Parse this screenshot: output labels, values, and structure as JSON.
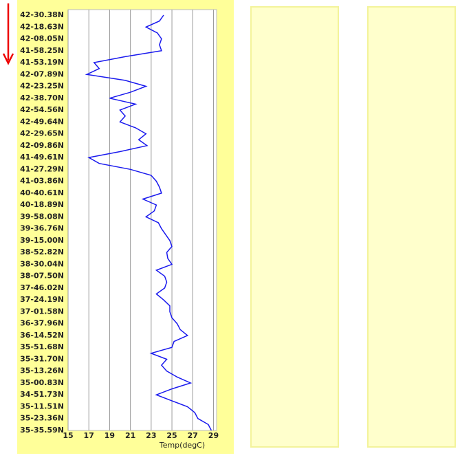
{
  "chart_data": {
    "type": "line",
    "orientation": "vertical-track",
    "x_label": "Temp(degC)",
    "categories": [
      "42-30.38N",
      null,
      "42-18.63N",
      null,
      "42-08.05N",
      null,
      "41-58.25N",
      null,
      "41-53.19N",
      null,
      "42-07.89N",
      null,
      "42-23.25N",
      null,
      "42-38.70N",
      null,
      "42-54.56N",
      null,
      "42-49.64N",
      null,
      "42-29.65N",
      null,
      "42-09.86N",
      null,
      "41-49.61N",
      null,
      "41-27.29N",
      null,
      "41-03.86N",
      null,
      "40-40.61N",
      null,
      "40-18.89N",
      null,
      "39-58.08N",
      null,
      "39-36.76N",
      null,
      "39-15.00N",
      null,
      "38-52.82N",
      null,
      "38-30.04N",
      null,
      "38-07.50N",
      null,
      "37-46.02N",
      null,
      "37-24.19N",
      null,
      "37-01.58N",
      null,
      "36-37.96N",
      null,
      "36-14.52N",
      null,
      "35-51.68N",
      null,
      "35-31.70N",
      null,
      "35-13.26N",
      null,
      "35-00.83N",
      null,
      "34-51.73N",
      null,
      "35-11.51N",
      null,
      "35-23.36N",
      null,
      "35-35.59N"
    ],
    "series": [
      {
        "name": "Temp",
        "color": "#1a1aee",
        "values": [
          24.2,
          23.8,
          22.5,
          23.6,
          24.0,
          23.8,
          24.0,
          20.5,
          17.5,
          18,
          16.8,
          20.5,
          22.5,
          21,
          19,
          21.5,
          20,
          20.5,
          20,
          21.5,
          22.5,
          21.8,
          22.6,
          20,
          17,
          18,
          21,
          23,
          23.5,
          23.8,
          24,
          22.2,
          23.5,
          23.3,
          22.5,
          23.7,
          24,
          24.4,
          24.8,
          25,
          24.5,
          24.6,
          25.0,
          23.5,
          24.3,
          24.5,
          24.3,
          23.5,
          24.2,
          24.8,
          24.8,
          25.0,
          25.5,
          25.8,
          26.5,
          25.2,
          25,
          23,
          24.5,
          24,
          24.5,
          25.5,
          26.8,
          25,
          23.5,
          25,
          26.5,
          27.2,
          27.5,
          28.5,
          28.8
        ]
      }
    ],
    "xlim": [
      15,
      29.3
    ],
    "xticks": [
      15,
      17,
      19,
      21,
      23,
      25,
      27,
      29
    ],
    "grid": true
  }
}
